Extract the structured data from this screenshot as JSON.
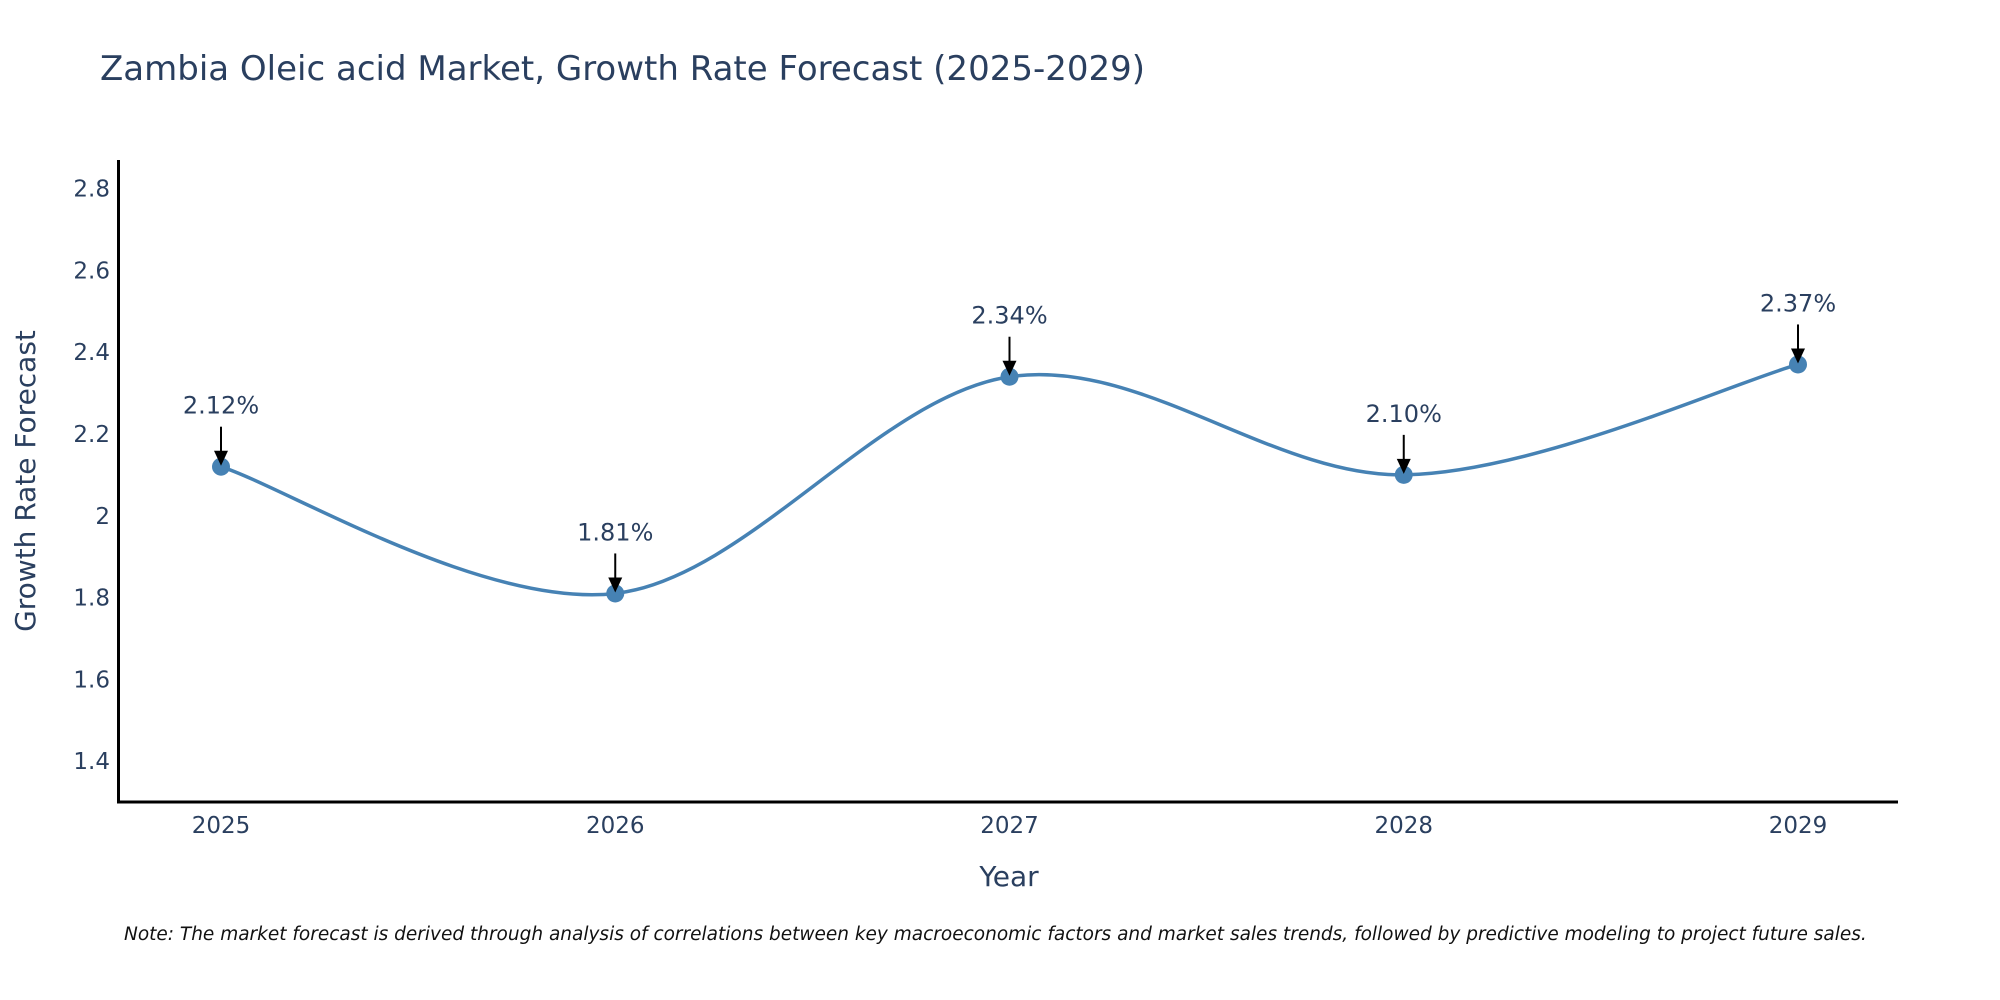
{
  "chart_data": {
    "type": "line",
    "title": "Zambia Oleic acid Market, Growth Rate Forecast (2025-2029)",
    "xlabel": "Year",
    "ylabel": "Growth Rate Forecast",
    "categories": [
      "2025",
      "2026",
      "2027",
      "2028",
      "2029"
    ],
    "values": [
      2.12,
      1.81,
      2.34,
      2.1,
      2.37
    ],
    "data_labels": [
      "2.12%",
      "1.81%",
      "2.34%",
      "2.10%",
      "2.37%"
    ],
    "ylim": [
      1.3,
      2.87
    ],
    "yticks": [
      1.4,
      1.6,
      1.8,
      2,
      2.2,
      2.4,
      2.6,
      2.8
    ],
    "ytick_labels": [
      "1.4",
      "1.6",
      "1.8",
      "2",
      "2.2",
      "2.4",
      "2.6",
      "2.8"
    ],
    "grid": false,
    "line_shape": "spline",
    "line_color": "#4682b4",
    "note": "Note: The market forecast is derived through analysis of correlations between key macroeconomic factors and market sales trends, followed by predictive modeling to project future sales."
  }
}
